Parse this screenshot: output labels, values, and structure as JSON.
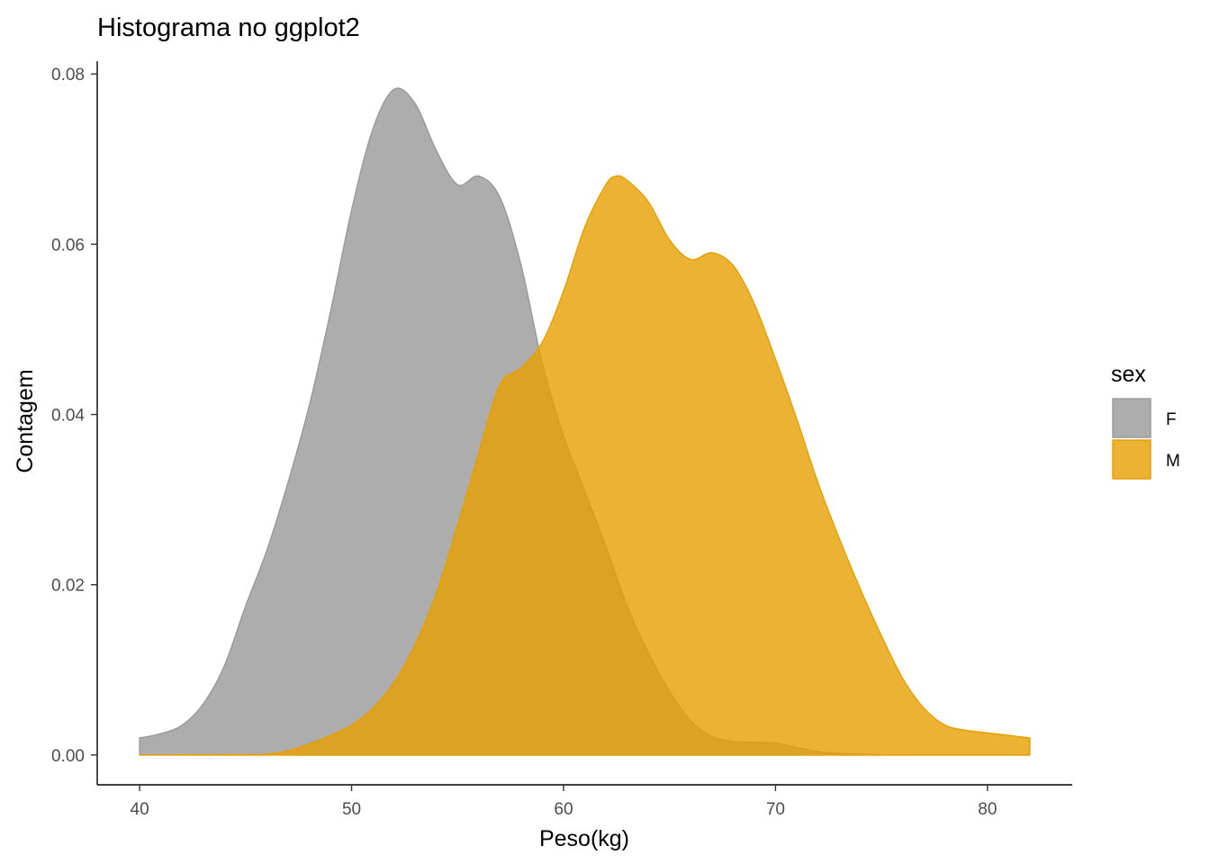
{
  "chart_data": {
    "type": "area",
    "title": "Histograma no ggplot2",
    "xlabel": "Peso(kg)",
    "ylabel": "Contagem",
    "xlim": [
      38,
      84
    ],
    "ylim": [
      -0.0035,
      0.0815
    ],
    "x_ticks": [
      40,
      50,
      60,
      70,
      80
    ],
    "y_ticks": [
      0.0,
      0.02,
      0.04,
      0.06,
      0.08
    ],
    "x_tick_labels": [
      "40",
      "50",
      "60",
      "70",
      "80"
    ],
    "y_tick_labels": [
      "0.00",
      "0.02",
      "0.04",
      "0.06",
      "0.08"
    ],
    "grid": false,
    "legend": {
      "title": "sex",
      "position": "right"
    },
    "series": [
      {
        "name": "F",
        "fill": "#999999",
        "outline": "#999999",
        "opacity": 0.8,
        "points": [
          [
            40,
            0.002
          ],
          [
            41,
            0.0025
          ],
          [
            42,
            0.0035
          ],
          [
            43,
            0.006
          ],
          [
            44,
            0.0105
          ],
          [
            45,
            0.0175
          ],
          [
            46,
            0.024
          ],
          [
            47,
            0.032
          ],
          [
            48,
            0.041
          ],
          [
            49,
            0.052
          ],
          [
            50,
            0.064
          ],
          [
            51,
            0.0735
          ],
          [
            52,
            0.0782
          ],
          [
            53,
            0.0765
          ],
          [
            54,
            0.071
          ],
          [
            55,
            0.067
          ],
          [
            56,
            0.068
          ],
          [
            57,
            0.0655
          ],
          [
            58,
            0.0575
          ],
          [
            59,
            0.046
          ],
          [
            60,
            0.0375
          ],
          [
            61,
            0.031
          ],
          [
            62,
            0.0245
          ],
          [
            63,
            0.0175
          ],
          [
            64,
            0.012
          ],
          [
            65,
            0.0075
          ],
          [
            66,
            0.004
          ],
          [
            67,
            0.0022
          ],
          [
            68,
            0.0016
          ],
          [
            69,
            0.0015
          ],
          [
            70,
            0.0014
          ],
          [
            71,
            0.0009
          ],
          [
            72,
            0.0004
          ],
          [
            73,
            0.0002
          ],
          [
            74,
            0.0001
          ],
          [
            75,
            5e-05
          ],
          [
            76,
            0.0
          ],
          [
            82,
            0.0
          ]
        ]
      },
      {
        "name": "M",
        "fill": "#E69F00",
        "outline": "#E69F00",
        "opacity": 0.8,
        "points": [
          [
            40,
            0.0
          ],
          [
            45,
            5e-05
          ],
          [
            46,
            0.0001
          ],
          [
            47,
            0.0005
          ],
          [
            48,
            0.0013
          ],
          [
            49,
            0.0023
          ],
          [
            50,
            0.0035
          ],
          [
            51,
            0.0055
          ],
          [
            52,
            0.0085
          ],
          [
            53,
            0.013
          ],
          [
            54,
            0.019
          ],
          [
            55,
            0.027
          ],
          [
            56,
            0.0355
          ],
          [
            57,
            0.0435
          ],
          [
            58,
            0.0455
          ],
          [
            59,
            0.0485
          ],
          [
            60,
            0.0545
          ],
          [
            61,
            0.062
          ],
          [
            62,
            0.067
          ],
          [
            62.5,
            0.068
          ],
          [
            63,
            0.0675
          ],
          [
            64,
            0.065
          ],
          [
            65,
            0.0605
          ],
          [
            66,
            0.0582
          ],
          [
            67,
            0.059
          ],
          [
            68,
            0.0575
          ],
          [
            69,
            0.053
          ],
          [
            70,
            0.0465
          ],
          [
            71,
            0.0395
          ],
          [
            72,
            0.032
          ],
          [
            73,
            0.0255
          ],
          [
            74,
            0.0195
          ],
          [
            75,
            0.014
          ],
          [
            76,
            0.009
          ],
          [
            77,
            0.0055
          ],
          [
            78,
            0.0035
          ],
          [
            79,
            0.0029
          ],
          [
            80,
            0.0026
          ],
          [
            81,
            0.0023
          ],
          [
            82,
            0.002
          ]
        ]
      }
    ]
  }
}
